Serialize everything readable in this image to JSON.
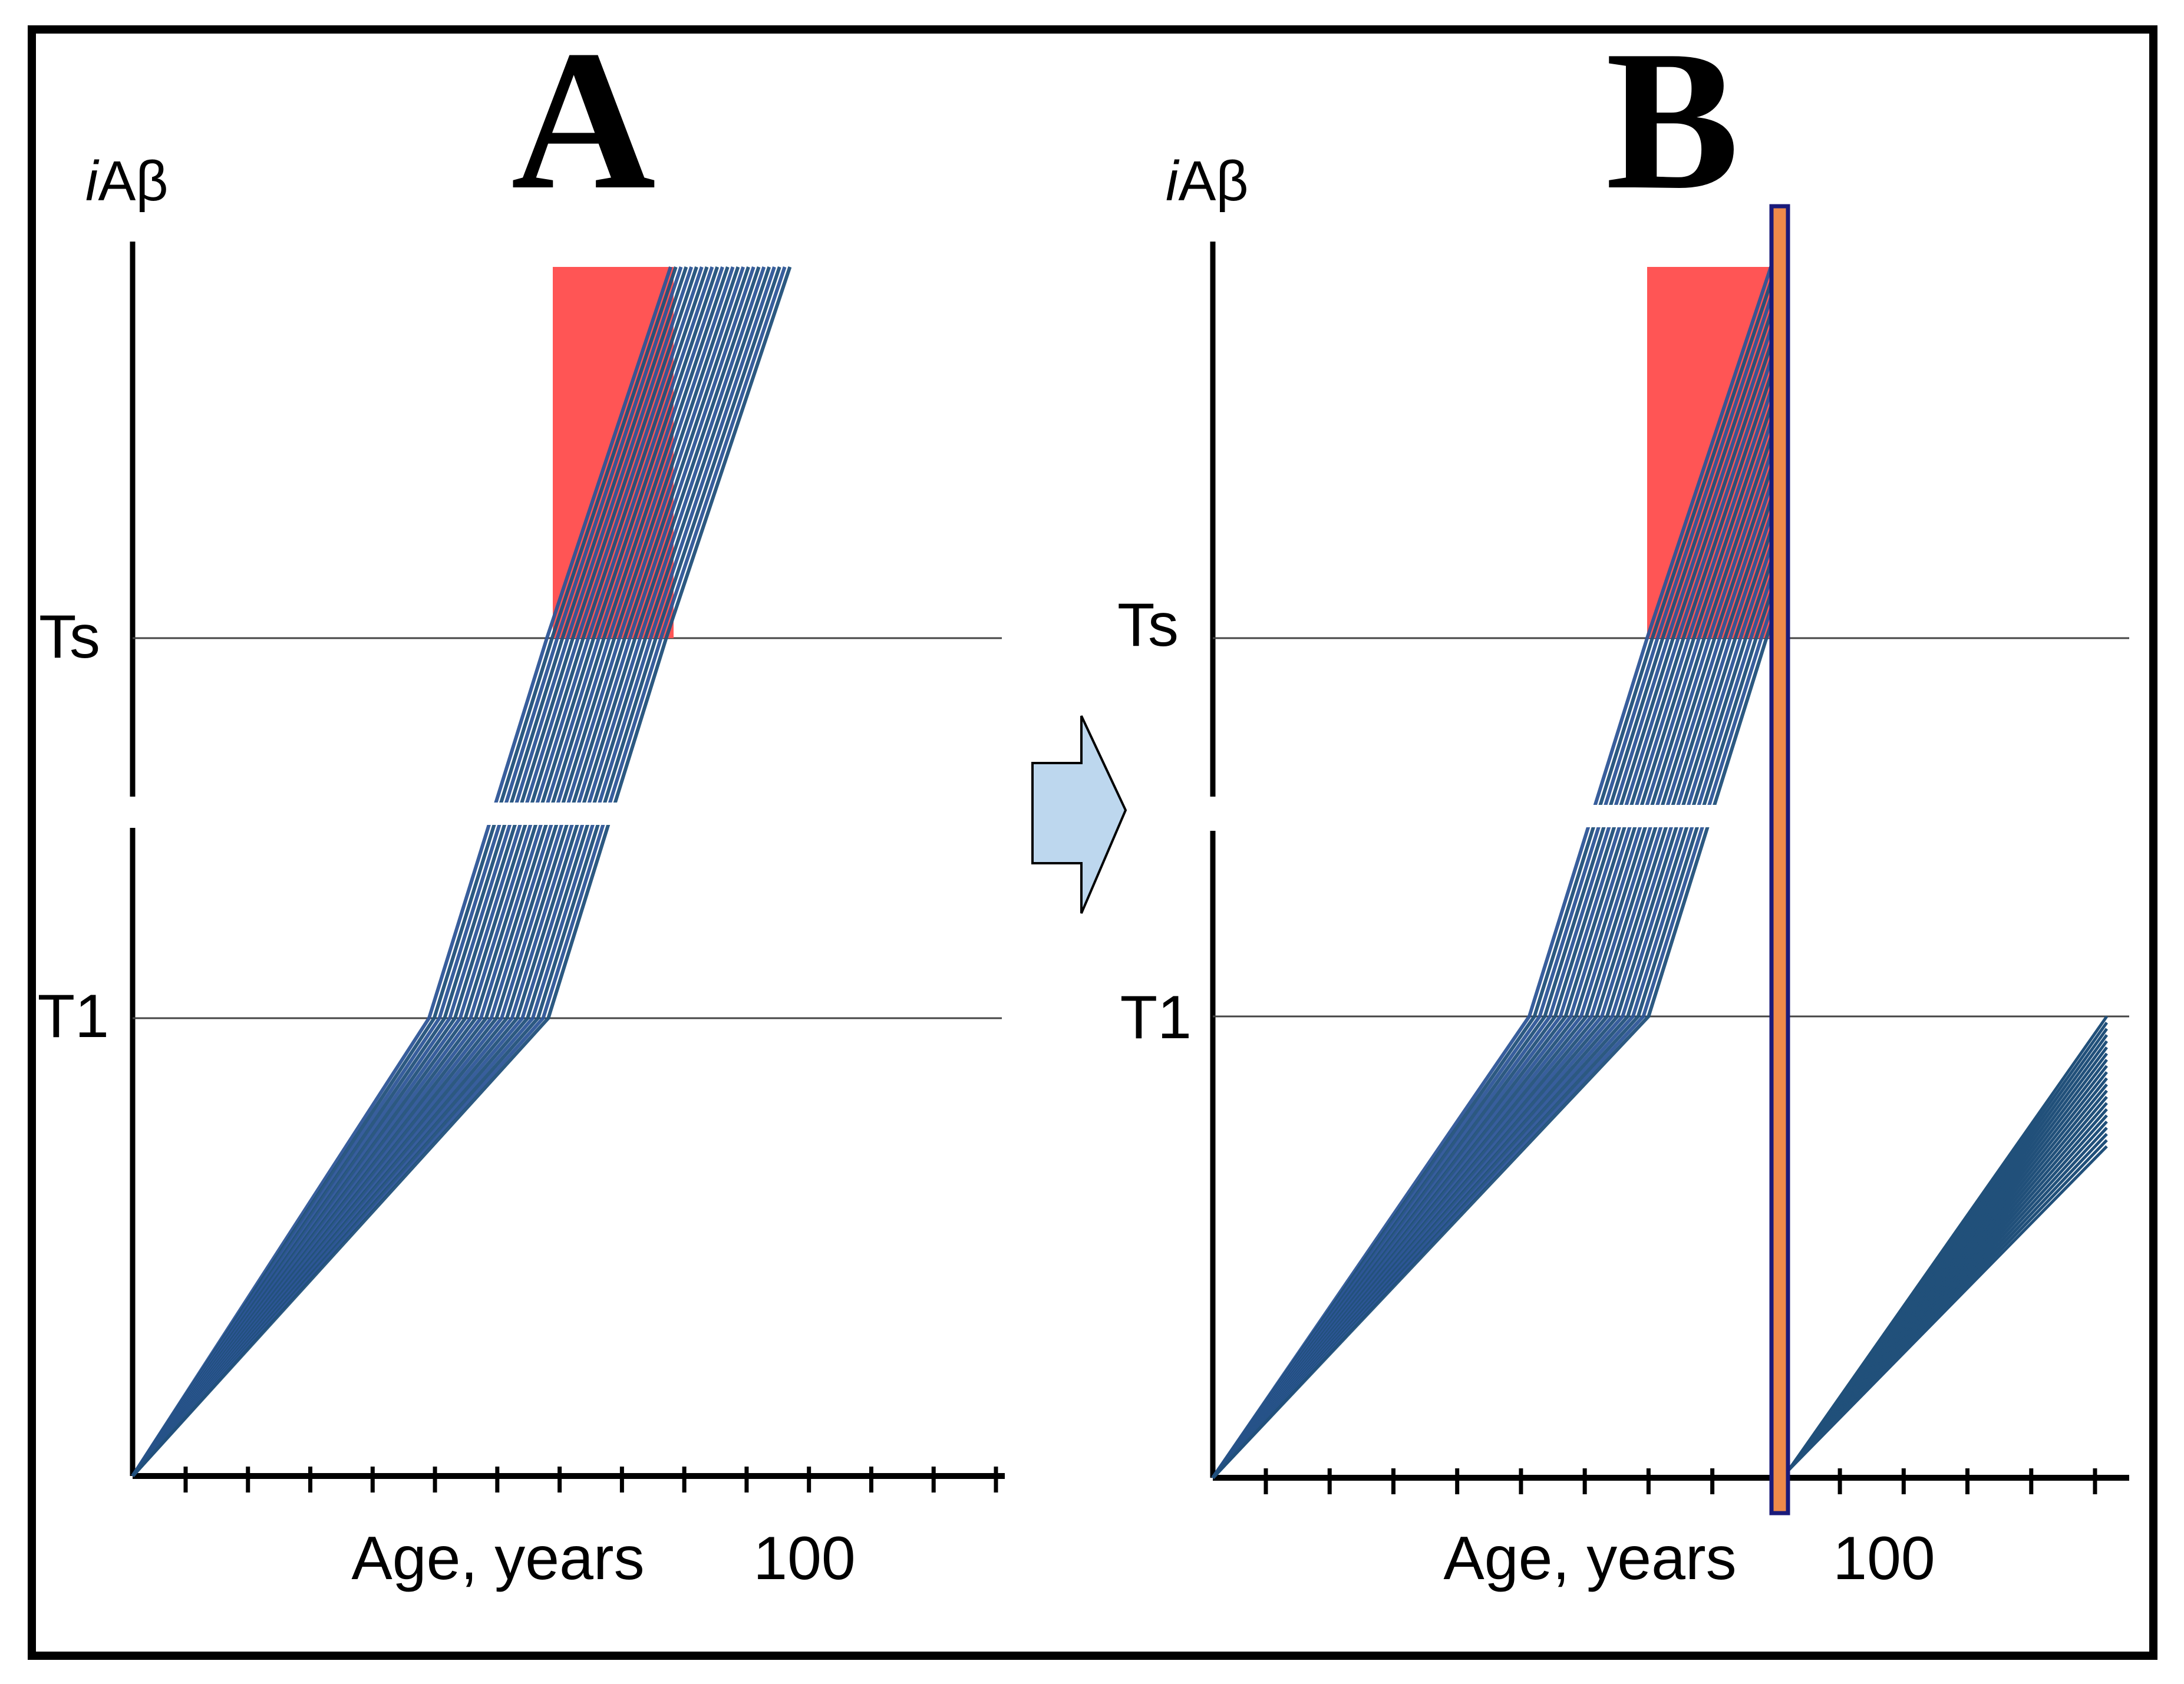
{
  "figure": {
    "panels": [
      {
        "letter": "A",
        "y_label_italic": "i",
        "y_label_rest": "Aβ",
        "thresholds": [
          "Ts",
          "T1"
        ],
        "x_axis_label": "Age, years",
        "x_axis_value": "100",
        "intervention_band": false,
        "second_wave": false
      },
      {
        "letter": "B",
        "y_label_italic": "i",
        "y_label_rest": "Aβ",
        "thresholds": [
          "Ts",
          "T1"
        ],
        "x_axis_label": "Age, years",
        "x_axis_value": "100",
        "intervention_band": true,
        "second_wave": true
      }
    ],
    "colors": {
      "trajectory": "#2d5597",
      "trajectory_dark": "#21507a",
      "disease_zone": "#ff5555",
      "intervention_fill": "#ee8a4a",
      "intervention_border": "#1a1a7a",
      "arrow_fill": "#bdd7ee",
      "frame": "#000000"
    }
  }
}
